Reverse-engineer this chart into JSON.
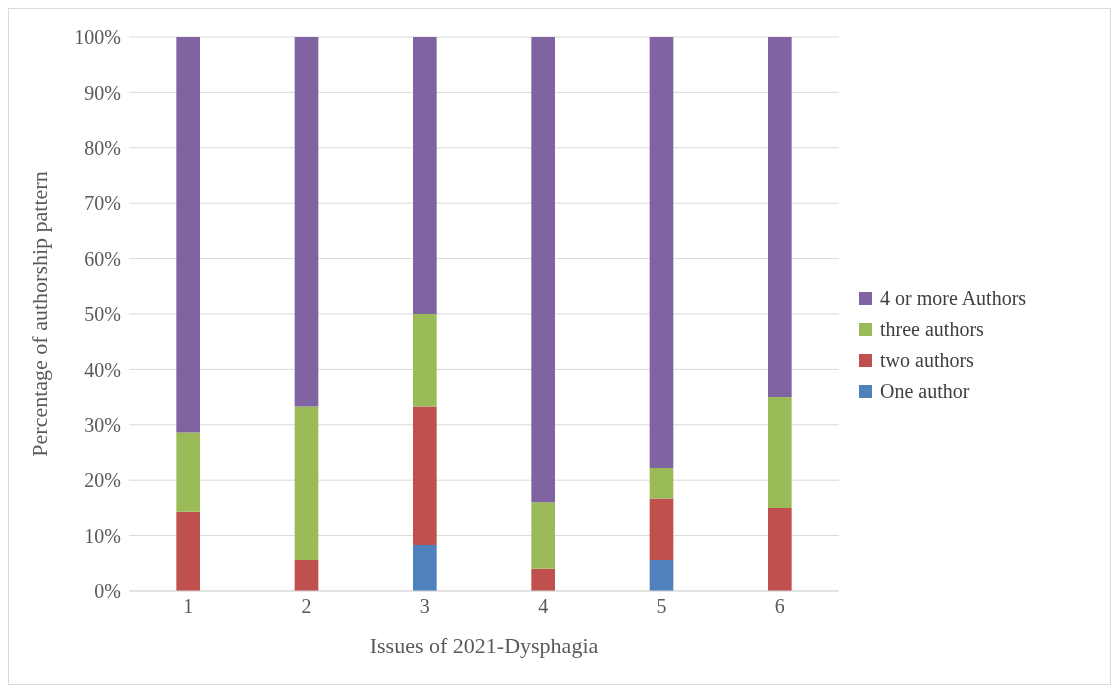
{
  "chart_data": {
    "type": "bar",
    "stacked": true,
    "xlabel": "Issues of 2021-Dysphagia",
    "ylabel": "Percentage of authorship pattern",
    "categories": [
      "1",
      "2",
      "3",
      "4",
      "5",
      "6"
    ],
    "series": [
      {
        "name": "One author",
        "color": "#4f81bd",
        "values": [
          0,
          0,
          8.3,
          0,
          5.6,
          0
        ]
      },
      {
        "name": "two authors",
        "color": "#c0504d",
        "values": [
          14.3,
          5.6,
          25,
          4,
          11.1,
          15
        ]
      },
      {
        "name": "three authors",
        "color": "#9bbb59",
        "values": [
          14.3,
          27.7,
          16.7,
          12,
          5.5,
          20
        ]
      },
      {
        "name": "4 or more Authors",
        "color": "#8064a2",
        "values": [
          71.4,
          66.7,
          50,
          84,
          77.8,
          65
        ]
      }
    ],
    "ylim": [
      0,
      100
    ],
    "yticks": [
      {
        "value": 0,
        "label": "0%"
      },
      {
        "value": 10,
        "label": "10%"
      },
      {
        "value": 20,
        "label": "20%"
      },
      {
        "value": 30,
        "label": "30%"
      },
      {
        "value": 40,
        "label": "40%"
      },
      {
        "value": 50,
        "label": "50%"
      },
      {
        "value": 60,
        "label": "60%"
      },
      {
        "value": 70,
        "label": "70%"
      },
      {
        "value": 80,
        "label": "80%"
      },
      {
        "value": 90,
        "label": "90%"
      },
      {
        "value": 100,
        "label": "100%"
      }
    ],
    "grid": "y",
    "legend": "right"
  }
}
